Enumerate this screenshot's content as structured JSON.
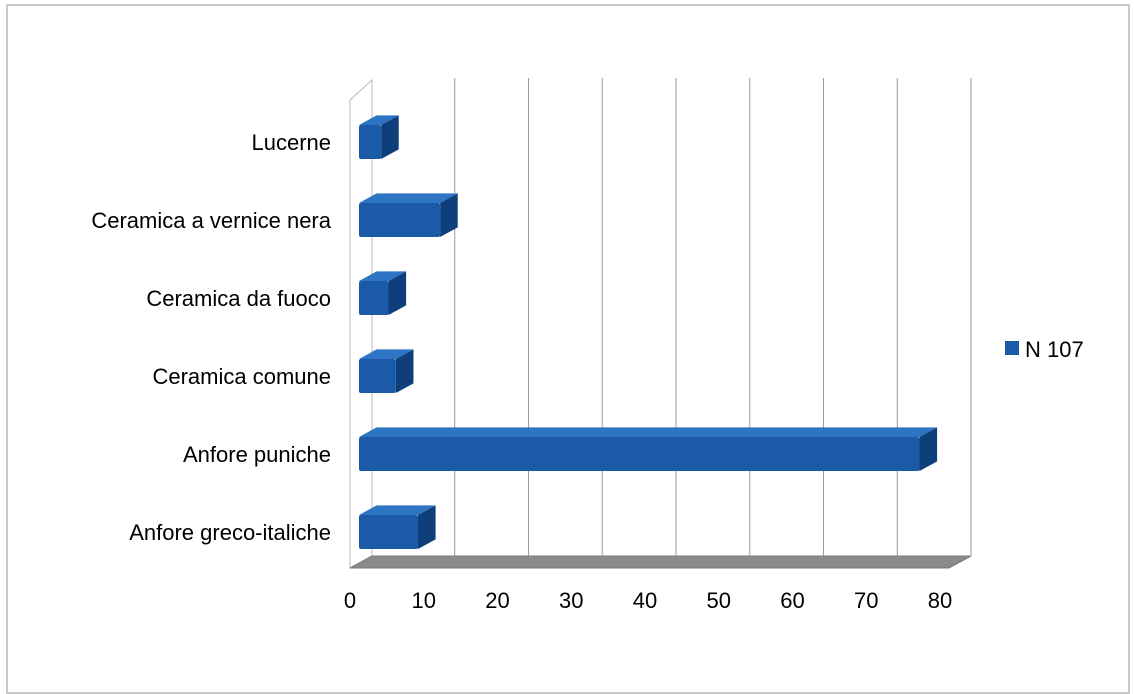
{
  "chart_data": {
    "type": "bar",
    "orientation": "horizontal",
    "style": "3d",
    "categories": [
      "Anfore greco-italiche",
      "Anfore puniche",
      "Ceramica comune",
      "Ceramica da fuoco",
      "Ceramica a vernice nera",
      "Lucerne"
    ],
    "series": [
      {
        "name": "N 107",
        "values": [
          8,
          76,
          5,
          4,
          11,
          3
        ],
        "color": "#1a5aa6"
      }
    ],
    "x_ticks": [
      "0",
      "10",
      "20",
      "30",
      "40",
      "50",
      "60",
      "70",
      "80"
    ],
    "xlim": [
      0,
      80
    ],
    "grid": "vertical",
    "legend_position": "right"
  },
  "colors": {
    "bar": "#1a5aa6",
    "bar_top": "#2e74c4",
    "bar_side": "#0e3f7a",
    "floor": "#8a8a8a",
    "grid": "#9a9a9a"
  }
}
